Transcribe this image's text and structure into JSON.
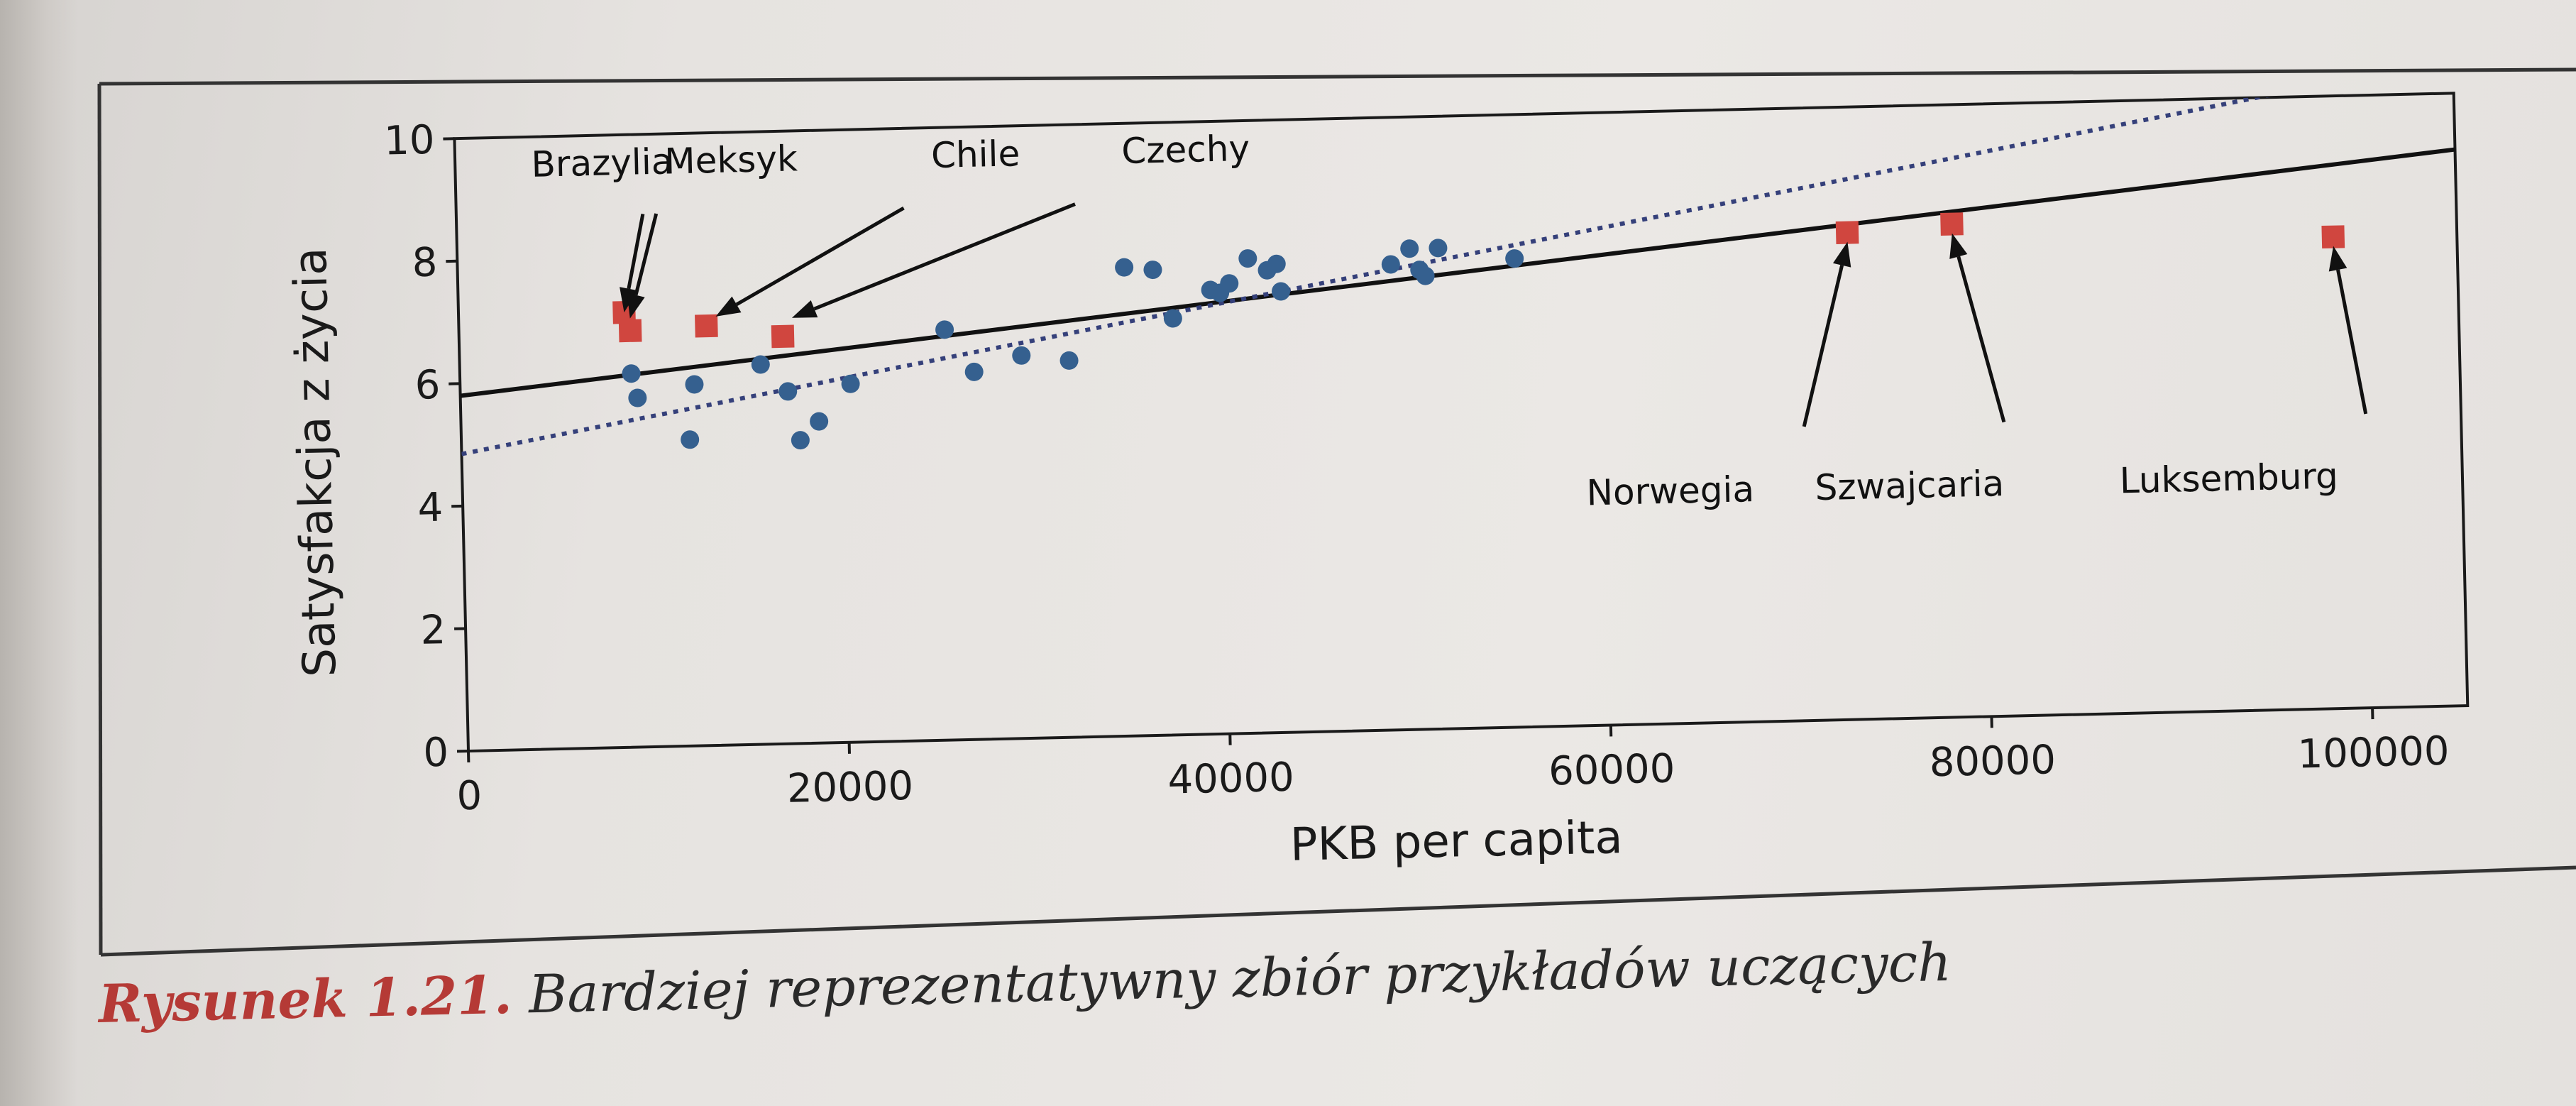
{
  "caption": {
    "label": "Rysunek 1.21.",
    "text": "Bardziej reprezentatywny zbiór przykładów uczących"
  },
  "chart_data": {
    "type": "scatter",
    "xlabel": "PKB per capita",
    "ylabel": "Satysfakcja z życia",
    "xlim": [
      0,
      105000
    ],
    "ylim": [
      0,
      10
    ],
    "x_ticks": [
      0,
      20000,
      40000,
      60000,
      80000,
      100000
    ],
    "y_ticks": [
      0,
      2,
      4,
      6,
      8,
      10
    ],
    "x_tick_labels": [
      "0",
      "20000",
      "40000",
      "60000",
      "80000",
      "100000"
    ],
    "y_tick_labels": [
      "0",
      "2",
      "4",
      "6",
      "8",
      "10"
    ],
    "grid": false,
    "colors": {
      "circles": "#35608f",
      "squares": "#d0463f",
      "lines": "#111111",
      "dotted_line": "#35407a"
    },
    "series": [
      {
        "marker": "circle",
        "points": [
          [
            9000,
            6.1
          ],
          [
            9300,
            5.7
          ],
          [
            12000,
            5.0
          ],
          [
            12300,
            5.9
          ],
          [
            15800,
            6.2
          ],
          [
            17200,
            5.75
          ],
          [
            17800,
            4.95
          ],
          [
            18800,
            5.25
          ],
          [
            20500,
            5.85
          ],
          [
            25500,
            6.7
          ],
          [
            27000,
            6.0
          ],
          [
            29500,
            6.25
          ],
          [
            32000,
            6.15
          ],
          [
            35000,
            7.65
          ],
          [
            36500,
            7.6
          ],
          [
            37500,
            6.8
          ],
          [
            39500,
            7.25
          ],
          [
            40000,
            7.2
          ],
          [
            40500,
            7.35
          ],
          [
            41500,
            7.75
          ],
          [
            42500,
            7.55
          ],
          [
            43000,
            7.65
          ],
          [
            43200,
            7.2
          ],
          [
            49000,
            7.6
          ],
          [
            50000,
            7.85
          ],
          [
            50500,
            7.5
          ],
          [
            50800,
            7.4
          ],
          [
            51500,
            7.85
          ],
          [
            55500,
            7.65
          ]
        ]
      },
      {
        "marker": "square",
        "points": [
          [
            8700,
            7.1
          ],
          [
            9000,
            6.8
          ],
          [
            13000,
            6.85
          ],
          [
            17000,
            6.65
          ],
          [
            73000,
            7.95
          ],
          [
            78500,
            8.05
          ],
          [
            98500,
            7.7
          ]
        ]
      }
    ],
    "lines": [
      {
        "style": "solid",
        "intercept": 5.8,
        "slope": 3.125e-05
      },
      {
        "style": "dotted",
        "intercept": 4.85,
        "slope": 5.44e-05
      }
    ],
    "annotations": [
      {
        "text": "Brazylia",
        "text_xy": [
          4000,
          9.35
        ],
        "arrow_to": [
          8700,
          7.1
        ],
        "arrow_from": [
          9800,
          8.7
        ]
      },
      {
        "text": "Meksyk",
        "text_xy": [
          11000,
          9.35
        ],
        "arrow_to": [
          9000,
          7.0
        ],
        "arrow_from": [
          10500,
          8.7
        ]
      },
      {
        "text": "Chile",
        "text_xy": [
          25000,
          9.35
        ],
        "arrow_to": [
          13500,
          7.0
        ],
        "arrow_from": [
          23500,
          8.7
        ]
      },
      {
        "text": "Czechy",
        "text_xy": [
          35000,
          9.35
        ],
        "arrow_to": [
          17500,
          6.95
        ],
        "arrow_from": [
          32500,
          8.7
        ]
      },
      {
        "text": "Norwegia",
        "text_xy": [
          59000,
          3.6
        ],
        "arrow_to": [
          73000,
          7.8
        ],
        "arrow_from": [
          70500,
          4.8
        ]
      },
      {
        "text": "Szwajcaria",
        "text_xy": [
          71000,
          3.6
        ],
        "arrow_to": [
          78500,
          7.9
        ],
        "arrow_from": [
          81000,
          4.8
        ]
      },
      {
        "text": "Luksemburg",
        "text_xy": [
          87000,
          3.6
        ],
        "arrow_to": [
          98500,
          7.55
        ],
        "arrow_from": [
          100000,
          4.8
        ]
      }
    ]
  }
}
